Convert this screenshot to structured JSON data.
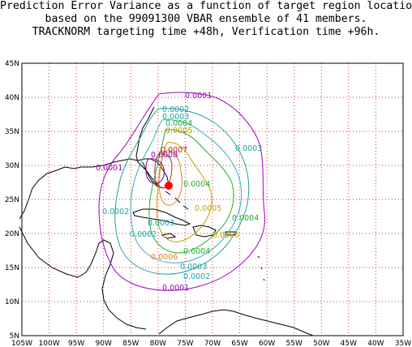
{
  "title": {
    "line1": "Prediction Error Variance as a function of target region location",
    "line2": "based on the 99091300 VBAR ensemble of 41 members.",
    "line3": "TRACKNORM targeting time +48h, Verification time +96h."
  },
  "map": {
    "lat_labels": [
      "45N",
      "40N",
      "35N",
      "30N",
      "25N",
      "20N",
      "15N",
      "10N",
      "5N"
    ],
    "lon_labels": [
      "105W",
      "100W",
      "95W",
      "90W",
      "85W",
      "80W",
      "75W",
      "70W",
      "65W",
      "60W",
      "55W",
      "50W",
      "45W",
      "40W",
      "35W"
    ],
    "grid_style": "red dotted",
    "contour_labels": [
      {
        "text": "0.0001",
        "color": "#a000c0"
      },
      {
        "text": "0.0002",
        "color": "#20a0a0"
      },
      {
        "text": "0.0003",
        "color": "#20a0a0"
      },
      {
        "text": "0.0004",
        "color": "#20b030"
      },
      {
        "text": "0.0005",
        "color": "#c0a000"
      },
      {
        "text": "0.0006",
        "color": "#e08020"
      },
      {
        "text": "0.0007",
        "color": "#c02030"
      },
      {
        "text": "0.0008",
        "color": "#8000a0"
      }
    ],
    "storm_marker": "red-dot",
    "colors": {
      "grid": "#e03030",
      "coast": "#000000",
      "frame": "#000000"
    }
  }
}
